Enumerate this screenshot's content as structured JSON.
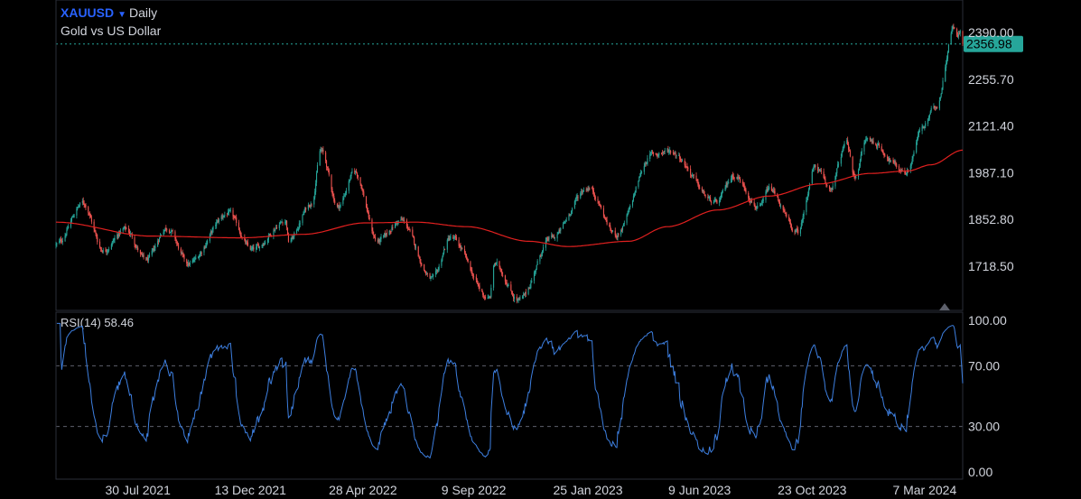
{
  "header": {
    "symbol": "XAUUSD",
    "interval": "Daily",
    "description": "Gold vs US Dollar",
    "caret_icon": "caret-down-icon"
  },
  "colors": {
    "background": "#000000",
    "up": "#26a69a",
    "down": "#ef5350",
    "ma_line": "#e0201f",
    "rsi_line": "#3d7fe0",
    "price_tag": "#26a69a",
    "text": "#d1d4dc",
    "accent": "#2962ff"
  },
  "chart_data": [
    {
      "type": "candlestick",
      "title": "XAUUSD Daily",
      "subtitle": "Gold vs US Dollar",
      "x_range": [
        "2021-04-22",
        "2024-04-22"
      ],
      "ylim": [
        1620,
        2440
      ],
      "y_ticks": [
        "2390.00",
        "2255.70",
        "2121.40",
        "1987.10",
        "1852.80",
        "1718.50"
      ],
      "x_ticks": [
        "30 Jul 2021",
        "13 Dec 2021",
        "28 Apr 2022",
        "9 Sep 2022",
        "25 Jan 2023",
        "9 Jun 2023",
        "23 Oct 2023",
        "7 Mar 2024"
      ],
      "x_tick_dates": [
        "2021-07-30",
        "2021-12-13",
        "2022-04-28",
        "2022-09-09",
        "2023-01-25",
        "2023-06-09",
        "2023-10-23",
        "2024-03-07"
      ],
      "last_price": "2356.98",
      "last_price_value": 2356.98,
      "price_keypoints": [
        [
          "2021-04-22",
          1780
        ],
        [
          "2021-05-25",
          1900
        ],
        [
          "2021-06-18",
          1765
        ],
        [
          "2021-07-15",
          1825
        ],
        [
          "2021-08-09",
          1735
        ],
        [
          "2021-09-03",
          1830
        ],
        [
          "2021-09-29",
          1725
        ],
        [
          "2021-11-16",
          1870
        ],
        [
          "2021-12-15",
          1765
        ],
        [
          "2022-01-25",
          1850
        ],
        [
          "2022-01-28",
          1790
        ],
        [
          "2022-02-25",
          1900
        ],
        [
          "2022-03-08",
          2050
        ],
        [
          "2022-03-29",
          1890
        ],
        [
          "2022-04-18",
          1990
        ],
        [
          "2022-05-16",
          1790
        ],
        [
          "2022-06-13",
          1850
        ],
        [
          "2022-07-21",
          1680
        ],
        [
          "2022-08-12",
          1800
        ],
        [
          "2022-09-28",
          1625
        ],
        [
          "2022-10-04",
          1725
        ],
        [
          "2022-11-03",
          1620
        ],
        [
          "2022-12-12",
          1800
        ],
        [
          "2023-01-25",
          1945
        ],
        [
          "2023-02-28",
          1810
        ],
        [
          "2023-04-13",
          2040
        ],
        [
          "2023-05-04",
          2050
        ],
        [
          "2023-06-29",
          1900
        ],
        [
          "2023-07-20",
          1980
        ],
        [
          "2023-08-21",
          1885
        ],
        [
          "2023-09-01",
          1940
        ],
        [
          "2023-10-05",
          1815
        ],
        [
          "2023-10-27",
          2005
        ],
        [
          "2023-11-13",
          1940
        ],
        [
          "2023-12-04",
          2072
        ],
        [
          "2023-12-13",
          1975
        ],
        [
          "2023-12-28",
          2083
        ],
        [
          "2024-02-14",
          1990
        ],
        [
          "2024-03-04",
          2115
        ],
        [
          "2024-03-21",
          2180
        ],
        [
          "2024-04-12",
          2410
        ],
        [
          "2024-04-16",
          2380
        ],
        [
          "2024-04-19",
          2391
        ],
        [
          "2024-04-22",
          2357
        ]
      ],
      "ma_keypoints": [
        [
          "2021-04-22",
          1845
        ],
        [
          "2021-08-15",
          1805
        ],
        [
          "2021-12-01",
          1800
        ],
        [
          "2022-02-15",
          1810
        ],
        [
          "2022-05-01",
          1843
        ],
        [
          "2022-07-01",
          1845
        ],
        [
          "2022-09-01",
          1832
        ],
        [
          "2022-11-15",
          1790
        ],
        [
          "2023-01-01",
          1775
        ],
        [
          "2023-03-15",
          1790
        ],
        [
          "2023-05-01",
          1832
        ],
        [
          "2023-07-01",
          1880
        ],
        [
          "2023-09-01",
          1920
        ],
        [
          "2023-11-01",
          1955
        ],
        [
          "2024-01-01",
          1985
        ],
        [
          "2024-02-15",
          1992
        ],
        [
          "2024-03-15",
          2010
        ],
        [
          "2024-04-22",
          2052
        ]
      ]
    },
    {
      "type": "line",
      "title": "RSI(14)",
      "label": "RSI(14) 58.46",
      "last_value": 58.46,
      "ylim": [
        0,
        100
      ],
      "y_ticks": [
        "100.00",
        "70.00",
        "30.00",
        "0.00"
      ],
      "levels": [
        70,
        30
      ]
    }
  ]
}
